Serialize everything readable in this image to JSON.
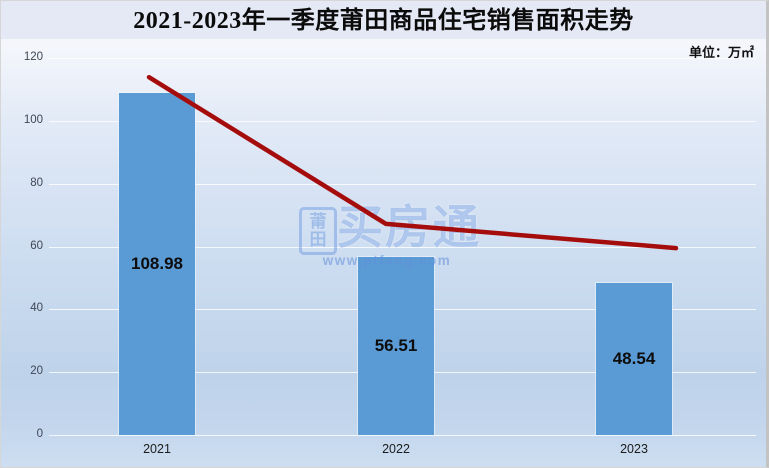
{
  "title": "2021-2023年一季度莆田商品住宅销售面积走势",
  "unit_label": "单位：万㎡",
  "watermark": {
    "stamp_text": "莆田",
    "brand": "买房通",
    "url": "www.ptfang.com"
  },
  "colors": {
    "bar_fill": "#5B9BD5",
    "trend_line": "#A50D0D",
    "banner_bg": "#E4E9F5",
    "background_top": "#F4F6FB",
    "background_bottom": "#BED3EA"
  },
  "chart_data": {
    "type": "bar",
    "title": "2021-2023年一季度莆田商品住宅销售面积走势",
    "categories": [
      "2021",
      "2022",
      "2023"
    ],
    "series": [
      {
        "name": "bars",
        "type": "bar",
        "values": [
          108.98,
          56.51,
          48.54
        ]
      },
      {
        "name": "trend-line",
        "type": "line",
        "values": [
          113.9,
          67.2,
          59.5
        ]
      }
    ],
    "value_labels": [
      "108.98",
      "56.51",
      "48.54"
    ],
    "xlabel": "",
    "ylabel": "万㎡",
    "ylim": [
      0,
      120
    ],
    "ytick_labels": [
      "120",
      "100",
      "80",
      "60",
      "40",
      "20",
      "0"
    ],
    "grid": true,
    "legend": false
  }
}
